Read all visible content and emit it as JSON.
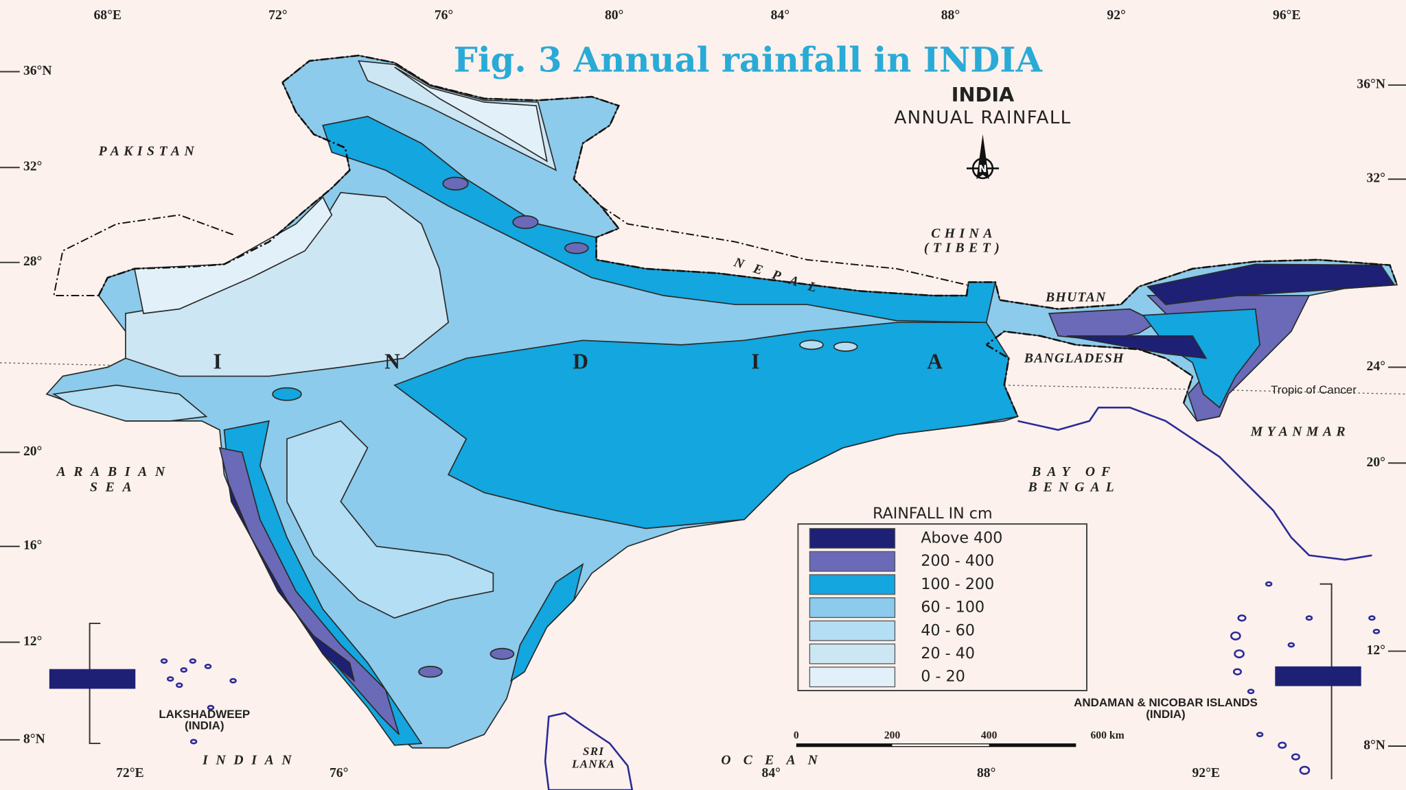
{
  "title": "Fig. 3 Annual rainfall in INDIA",
  "map_title": {
    "name": "INDIA",
    "subtitle": "ANNUAL RAINFALL"
  },
  "north": "N",
  "longitude_top": [
    "68°E",
    "72°",
    "76°",
    "80°",
    "84°",
    "88°",
    "92°",
    "96°E"
  ],
  "latitude_left": [
    "36°N",
    "32°",
    "28°",
    "20°",
    "16°",
    "12°",
    "8°N"
  ],
  "latitude_right": [
    "36°N",
    "32°",
    "24°",
    "20°",
    "12°",
    "8°N"
  ],
  "longitude_bottom": [
    "72°E",
    "76°",
    "84°",
    "88°",
    "92°E"
  ],
  "places": {
    "pakistan": "PAKISTAN",
    "china": [
      "CHINA",
      "(TIBET)"
    ],
    "nepal": "NEPAL",
    "bhutan": "BHUTAN",
    "bangladesh": "BANGLADESH",
    "myanmar": "MYANMAR",
    "bay_of_bengal": [
      "BAY OF",
      "BENGAL"
    ],
    "arabian_sea": [
      "ARABIAN",
      "SEA"
    ],
    "indian_ocean": [
      "INDIAN",
      "OCEAN"
    ],
    "sri_lanka": [
      "SRI",
      "LANKA"
    ],
    "lakshadweep": [
      "LAKSHADWEEP",
      "(INDIA)"
    ],
    "andaman": [
      "ANDAMAN & NICOBAR ISLANDS",
      "(INDIA)"
    ],
    "tropic": "Tropic of Cancer",
    "india_letters": [
      "I",
      "N",
      "D",
      "I",
      "A"
    ]
  },
  "legend": {
    "title": "RAINFALL IN cm",
    "items": [
      {
        "label": "Above 400",
        "color": "#1e2076"
      },
      {
        "label": "200 - 400",
        "color": "#6a6ab8"
      },
      {
        "label": "100 - 200",
        "color": "#13a6df"
      },
      {
        "label": "60 - 100",
        "color": "#8ccbeb"
      },
      {
        "label": "40 - 60",
        "color": "#b3def3"
      },
      {
        "label": "20 - 40",
        "color": "#cde6f3"
      },
      {
        "label": "0 - 20",
        "color": "#e2f1f9"
      }
    ]
  },
  "scale": [
    "0",
    "200",
    "400",
    "600 km"
  ]
}
